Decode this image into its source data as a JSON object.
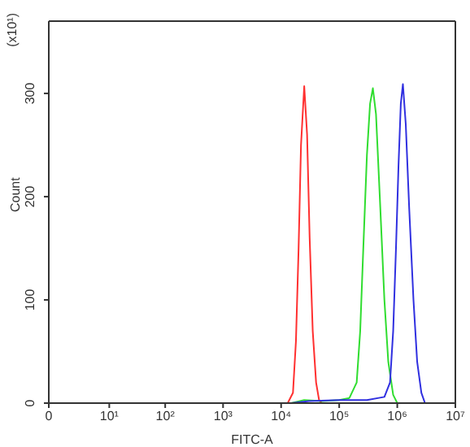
{
  "chart_data": {
    "type": "line",
    "xlabel": "FITC-A",
    "ylabel": "Count",
    "annotations": [
      "(x10¹)"
    ],
    "log": "x",
    "legend": false,
    "marker": "none",
    "xlim": [
      0,
      10000000
    ],
    "xticks": [
      0,
      {
        "value": 10,
        "label": "10¹"
      },
      {
        "value": 100,
        "label": "10²"
      },
      {
        "value": 1000,
        "label": "10³"
      },
      {
        "value": 10000,
        "label": "10⁴"
      },
      {
        "value": 100000,
        "label": "10⁵"
      },
      {
        "value": 1000000,
        "label": "10⁶"
      },
      {
        "value": 10000000,
        "label": "10⁷"
      }
    ],
    "ylim": [
      0,
      370
    ],
    "yticks": [
      0,
      100,
      200,
      300
    ],
    "series": [
      {
        "color": "#ff3030",
        "x": [
          13000,
          16000,
          18000,
          20000,
          22000,
          25000,
          28000,
          31000,
          35000,
          40000,
          45000,
          50000
        ],
        "values": [
          0,
          10,
          60,
          150,
          250,
          307,
          260,
          160,
          70,
          20,
          3,
          0
        ]
      },
      {
        "color": "#30dd30",
        "x": [
          15000,
          25000,
          50000,
          100000,
          150000,
          200000,
          230000,
          260000,
          300000,
          340000,
          380000,
          430000,
          500000,
          600000,
          700000,
          850000,
          1000000
        ],
        "values": [
          0,
          3,
          2,
          3,
          5,
          20,
          70,
          150,
          240,
          290,
          305,
          280,
          200,
          100,
          40,
          8,
          0
        ]
      },
      {
        "color": "#3030e0",
        "x": [
          15000,
          30000,
          100000,
          300000,
          600000,
          750000,
          850000,
          950000,
          1050000,
          1150000,
          1250000,
          1400000,
          1600000,
          1900000,
          2200000,
          2600000,
          3000000
        ],
        "values": [
          0,
          2,
          3,
          3,
          6,
          20,
          70,
          150,
          230,
          290,
          309,
          270,
          190,
          100,
          40,
          10,
          0
        ]
      }
    ]
  }
}
